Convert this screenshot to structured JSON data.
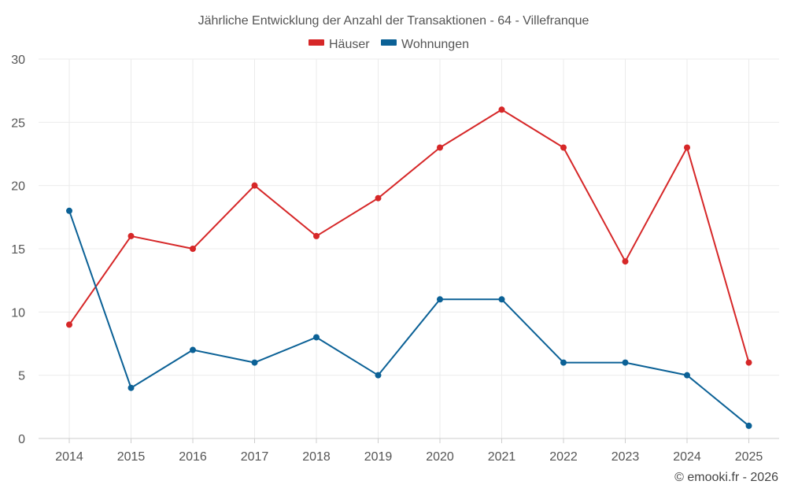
{
  "chart_data": {
    "type": "line",
    "title": "Jährliche Entwicklung der Anzahl der Transaktionen - 64 - Villefranque",
    "xlabel": "",
    "ylabel": "",
    "x": [
      "2014",
      "2015",
      "2016",
      "2017",
      "2018",
      "2019",
      "2020",
      "2021",
      "2022",
      "2023",
      "2024",
      "2025"
    ],
    "ylim": [
      0,
      30
    ],
    "yticks": [
      0,
      5,
      10,
      15,
      20,
      25,
      30
    ],
    "grid": true,
    "legend_position": "top-center",
    "series": [
      {
        "name": "Häuser",
        "color": "#d62728",
        "values": [
          9,
          16,
          15,
          20,
          16,
          19,
          23,
          26,
          23,
          14,
          23,
          6
        ]
      },
      {
        "name": "Wohnungen",
        "color": "#0b6196",
        "values": [
          18,
          4,
          7,
          6,
          8,
          5,
          11,
          11,
          6,
          6,
          5,
          1
        ]
      }
    ]
  },
  "credit": "© emooki.fr - 2026"
}
